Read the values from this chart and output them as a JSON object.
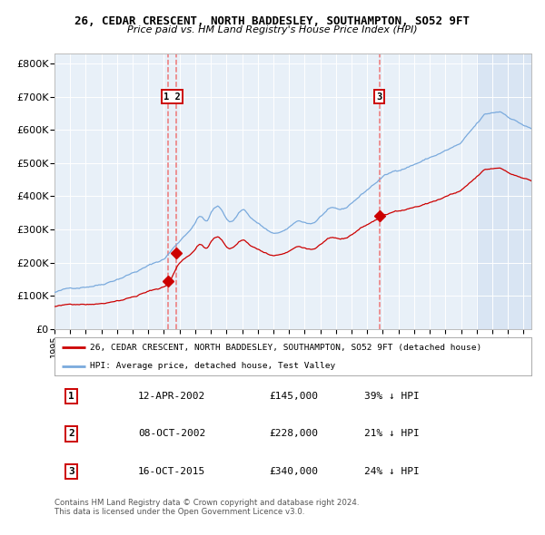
{
  "title": "26, CEDAR CRESCENT, NORTH BADDESLEY, SOUTHAMPTON, SO52 9FT",
  "subtitle": "Price paid vs. HM Land Registry's House Price Index (HPI)",
  "hpi_label": "HPI: Average price, detached house, Test Valley",
  "property_label": "26, CEDAR CRESCENT, NORTH BADDESLEY, SOUTHAMPTON, SO52 9FT (detached house)",
  "ylabel_ticks": [
    "£0",
    "£100K",
    "£200K",
    "£300K",
    "£400K",
    "£500K",
    "£600K",
    "£700K",
    "£800K"
  ],
  "ytick_values": [
    0,
    100000,
    200000,
    300000,
    400000,
    500000,
    600000,
    700000,
    800000
  ],
  "ylim": [
    0,
    830000
  ],
  "xlim_start": 1995.0,
  "xlim_end": 2025.5,
  "hpi_color": "#7aaadd",
  "property_color": "#cc0000",
  "dashed_color": "#ee7777",
  "plot_bg": "#e8f0f8",
  "grid_color": "#ffffff",
  "shade_color": "#c8d8ee",
  "transactions": [
    {
      "num": 1,
      "date": "12-APR-2002",
      "x": 2002.28,
      "price": 145000,
      "pct": "39%",
      "dir": "↓"
    },
    {
      "num": 2,
      "date": "08-OCT-2002",
      "x": 2002.78,
      "price": 228000,
      "pct": "21%",
      "dir": "↓"
    },
    {
      "num": 3,
      "date": "16-OCT-2015",
      "x": 2015.79,
      "price": 340000,
      "pct": "24%",
      "dir": "↓"
    }
  ],
  "footer_line1": "Contains HM Land Registry data © Crown copyright and database right 2024.",
  "footer_line2": "This data is licensed under the Open Government Licence v3.0."
}
